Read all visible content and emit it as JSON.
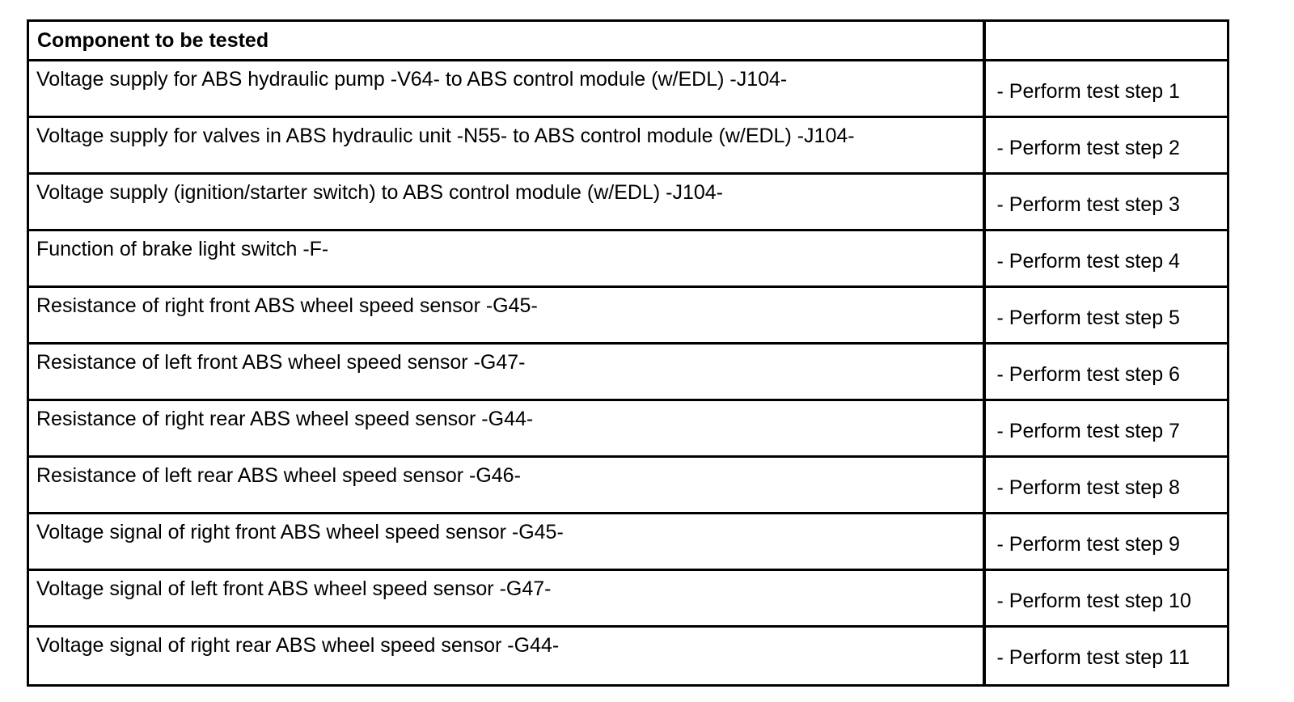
{
  "colors": {
    "border": "#000000",
    "text": "#000000",
    "background": "#ffffff"
  },
  "table": {
    "header": {
      "component_col": "Component to be tested",
      "action_col": ""
    },
    "rows": [
      {
        "component": "Voltage supply for ABS hydraulic pump -V64- to ABS control module (w/EDL) -J104-",
        "action": "- Perform test step 1"
      },
      {
        "component": "Voltage supply for valves in ABS hydraulic unit -N55- to ABS control module (w/EDL) -J104-",
        "action": "- Perform test step 2"
      },
      {
        "component": "Voltage supply (ignition/starter switch) to ABS control module (w/EDL) -J104-",
        "action": "- Perform test step 3"
      },
      {
        "component": "Function of brake light switch -F-",
        "action": "- Perform test step 4"
      },
      {
        "component": "Resistance of right front ABS wheel speed sensor -G45-",
        "action": "- Perform test step 5"
      },
      {
        "component": "Resistance of left front ABS wheel speed sensor -G47-",
        "action": "- Perform test step 6"
      },
      {
        "component": "Resistance of right rear ABS wheel speed sensor -G44-",
        "action": "- Perform test step 7"
      },
      {
        "component": "Resistance of left rear ABS wheel speed sensor -G46-",
        "action": "- Perform test step 8"
      },
      {
        "component": "Voltage signal of right front ABS wheel speed sensor -G45-",
        "action": "- Perform test step 9"
      },
      {
        "component": "Voltage signal of left front ABS wheel speed sensor -G47-",
        "action": "- Perform test step 10"
      },
      {
        "component": "Voltage signal of right rear ABS wheel speed sensor -G44-",
        "action": "- Perform test step 11"
      }
    ]
  }
}
